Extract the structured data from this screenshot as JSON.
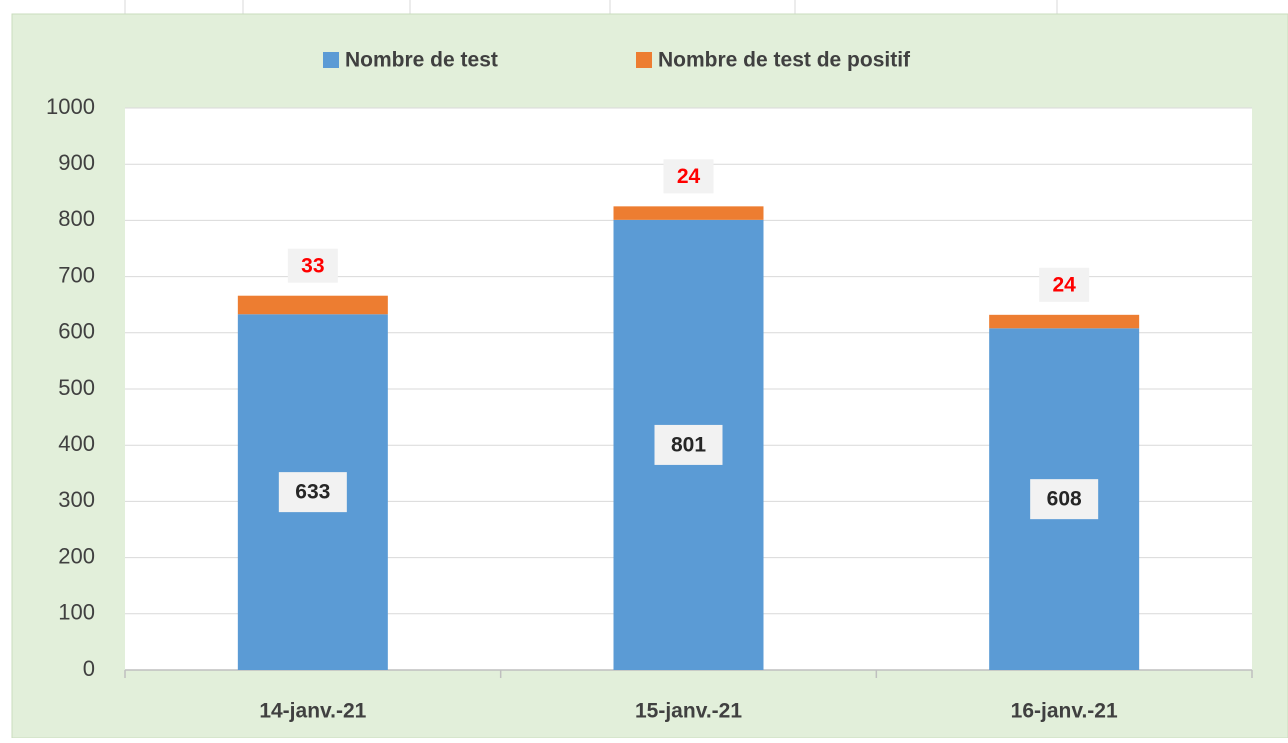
{
  "chart_data": {
    "type": "stacked_bar",
    "categories": [
      "14-janv.-21",
      "15-janv.-21",
      "16-janv.-21"
    ],
    "series": [
      {
        "name": "Nombre de test",
        "color": "#5b9bd5",
        "values": [
          633,
          801,
          608
        ]
      },
      {
        "name": "Nombre de test de positif",
        "color": "#ed7d31",
        "values": [
          33,
          24,
          24
        ]
      }
    ],
    "ylim": [
      0,
      1000
    ],
    "yticks": [
      0,
      100,
      200,
      300,
      400,
      500,
      600,
      700,
      800,
      900,
      1000
    ],
    "grid": true,
    "legend": "top"
  }
}
